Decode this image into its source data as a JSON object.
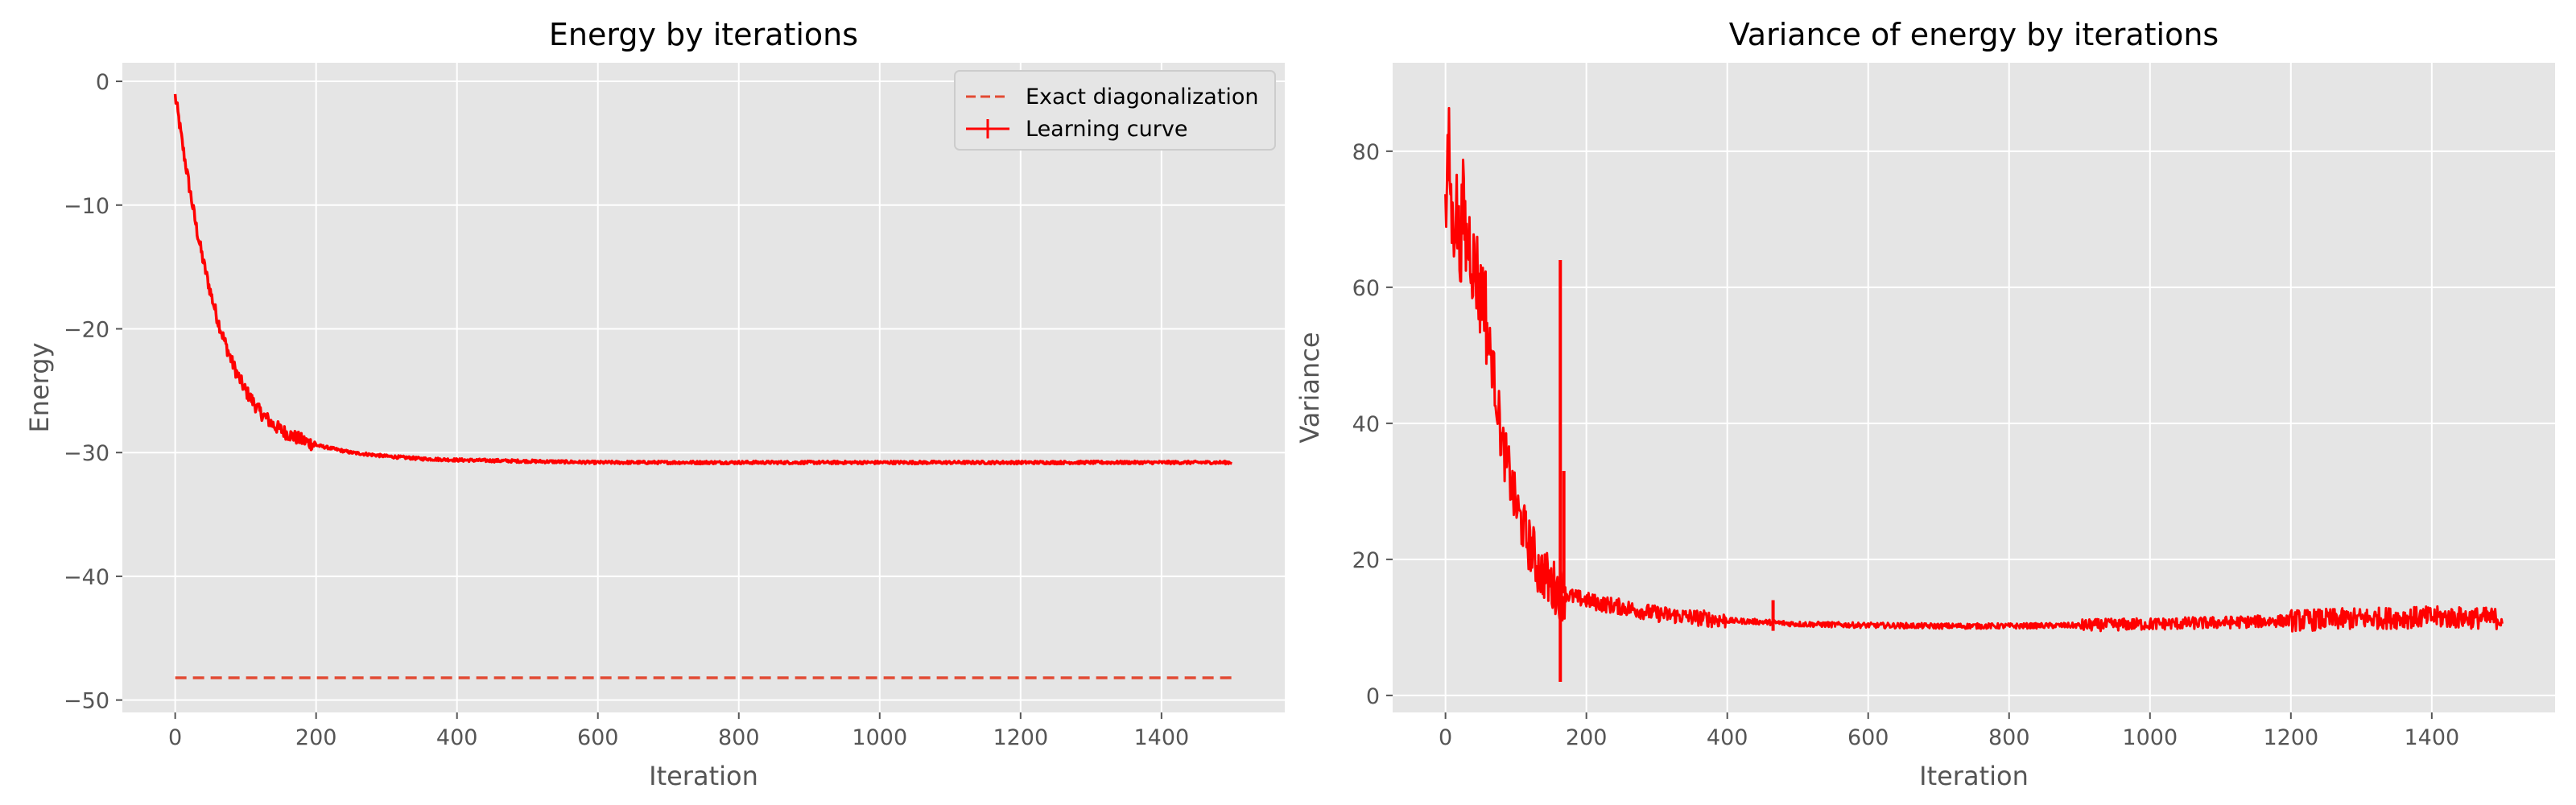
{
  "chart_data": [
    {
      "type": "line",
      "title": "Energy by iterations",
      "xlabel": "Iteration",
      "ylabel": "Energy",
      "xlim": [
        -75,
        1575
      ],
      "ylim": [
        -51,
        1.5
      ],
      "xticks": [
        0,
        200,
        400,
        600,
        800,
        1000,
        1200,
        1400
      ],
      "yticks": [
        0,
        -10,
        -20,
        -30,
        -40,
        -50
      ],
      "xtick_labels": [
        "0",
        "200",
        "400",
        "600",
        "800",
        "1000",
        "1200",
        "1400"
      ],
      "ytick_labels": [
        "0",
        "−10",
        "−20",
        "−30",
        "−40",
        "−50"
      ],
      "grid": true,
      "legend": "top-right",
      "series": [
        {
          "name": "Exact diagonalization",
          "style": "dashed",
          "color": "#E24A33",
          "x": [
            0,
            1500
          ],
          "y": [
            -48.2,
            -48.2
          ]
        },
        {
          "name": "Learning curve",
          "style": "solid-errorbar",
          "color": "#FF0000",
          "x": [
            0,
            5,
            10,
            20,
            30,
            40,
            50,
            60,
            70,
            80,
            90,
            100,
            120,
            140,
            160,
            180,
            200,
            250,
            300,
            350,
            400,
            500,
            600,
            700,
            800,
            900,
            1000,
            1100,
            1200,
            1300,
            1400,
            1500
          ],
          "y": [
            -1.2,
            -3.0,
            -5.0,
            -8.5,
            -11.8,
            -14.6,
            -17.0,
            -19.2,
            -21.0,
            -22.6,
            -23.9,
            -25.0,
            -26.7,
            -27.8,
            -28.5,
            -29.0,
            -29.4,
            -30.0,
            -30.3,
            -30.5,
            -30.6,
            -30.7,
            -30.8,
            -30.8,
            -30.8,
            -30.8,
            -30.8,
            -30.8,
            -30.8,
            -30.8,
            -30.8,
            -30.8
          ]
        }
      ]
    },
    {
      "type": "line",
      "title": "Variance of energy by iterations",
      "xlabel": "Iteration",
      "ylabel": "Variance",
      "xlim": [
        -75,
        1575
      ],
      "ylim": [
        -2.5,
        93
      ],
      "xticks": [
        0,
        200,
        400,
        600,
        800,
        1000,
        1200,
        1400
      ],
      "yticks": [
        0,
        20,
        40,
        60,
        80
      ],
      "xtick_labels": [
        "0",
        "200",
        "400",
        "600",
        "800",
        "1000",
        "1200",
        "1400"
      ],
      "ytick_labels": [
        "0",
        "20",
        "40",
        "60",
        "80"
      ],
      "grid": true,
      "series": [
        {
          "color": "#FF0000",
          "style": "solid",
          "x": [
            0,
            5,
            10,
            15,
            20,
            25,
            30,
            35,
            40,
            45,
            50,
            55,
            60,
            65,
            70,
            75,
            80,
            85,
            90,
            95,
            100,
            105,
            110,
            115,
            120,
            125,
            130,
            135,
            140,
            145,
            150,
            155,
            160,
            165,
            170,
            180,
            200,
            220,
            250,
            300,
            350,
            400,
            450,
            500,
            600,
            700,
            800,
            900,
            1000,
            1100,
            1200,
            1300,
            1400,
            1500
          ],
          "y": [
            70,
            80,
            68,
            73,
            65,
            72,
            66,
            67,
            63,
            62,
            58,
            60,
            52,
            50,
            46,
            42,
            37,
            35,
            33,
            30,
            28,
            26,
            25,
            23,
            22,
            21,
            19,
            18,
            18,
            17,
            16,
            16,
            15.5,
            15,
            15,
            14.5,
            14,
            13.5,
            13,
            12,
            11.5,
            11,
            10.8,
            10.5,
            10.3,
            10.2,
            10.2,
            10.3,
            10.5,
            10.7,
            11.0,
            11.3,
            11.5,
            11.3
          ],
          "spikes": [
            {
              "x": 163,
              "y_low": 2,
              "y_high": 64
            },
            {
              "x": 168,
              "y_low": 15,
              "y_high": 33
            },
            {
              "x": 465,
              "y_low": 9.5,
              "y_high": 14
            }
          ]
        }
      ]
    }
  ]
}
